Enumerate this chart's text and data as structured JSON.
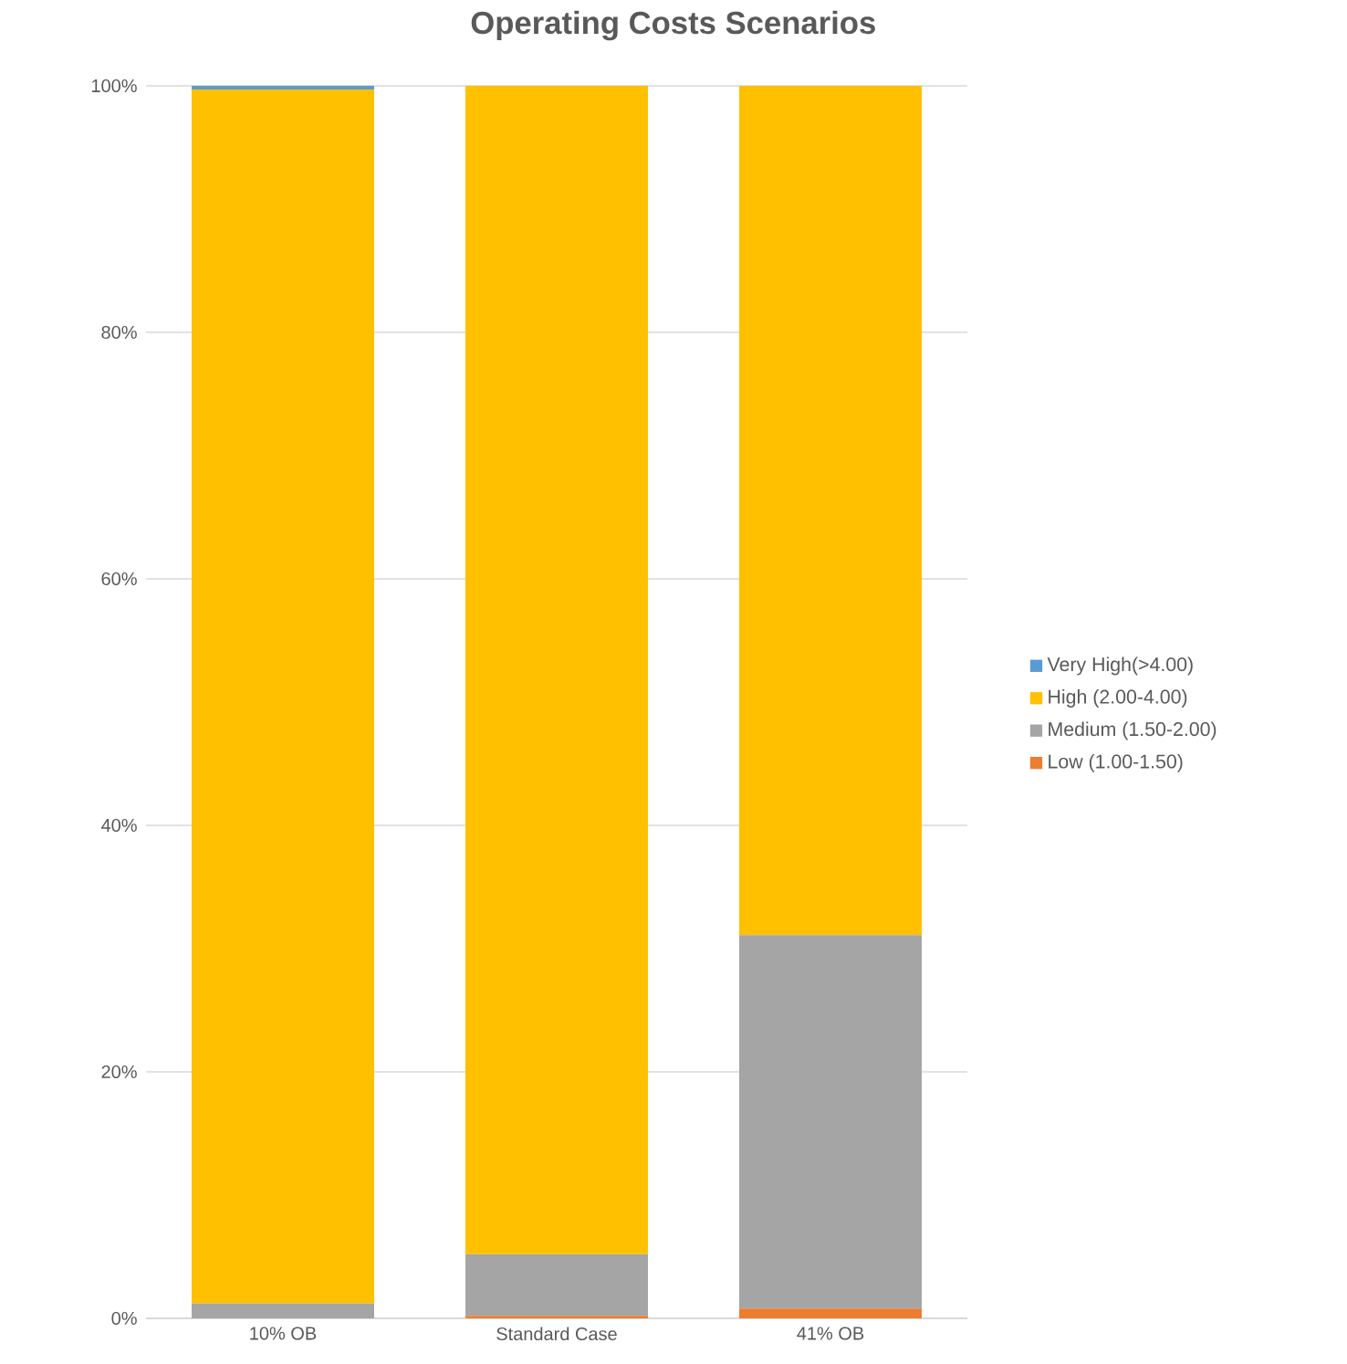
{
  "chart_data": {
    "type": "bar",
    "title": "Operating Costs Scenarios",
    "stacked": true,
    "categories": [
      "10% OB",
      "Standard Case",
      "41% OB"
    ],
    "series": [
      {
        "name": "Low (1.00-1.50)",
        "color": "#ed7d31",
        "values": [
          0,
          0.2,
          0.8
        ]
      },
      {
        "name": "Medium (1.50-2.00)",
        "color": "#a5a5a5",
        "values": [
          1.2,
          5.0,
          30.3
        ]
      },
      {
        "name": "High (2.00-4.00)",
        "color": "#ffc000",
        "values": [
          98.5,
          94.8,
          68.9
        ]
      },
      {
        "name": "Very High(>4.00)",
        "color": "#5b9bd5",
        "values": [
          0.3,
          0,
          0
        ]
      }
    ],
    "ylim": [
      0,
      100
    ],
    "yticks": [
      {
        "value": 0,
        "label": "0%"
      },
      {
        "value": 20,
        "label": "20%"
      },
      {
        "value": 40,
        "label": "40%"
      },
      {
        "value": 60,
        "label": "60%"
      },
      {
        "value": 80,
        "label": "80%"
      },
      {
        "value": 100,
        "label": "100%"
      }
    ],
    "grid": "y",
    "legend": "right"
  }
}
